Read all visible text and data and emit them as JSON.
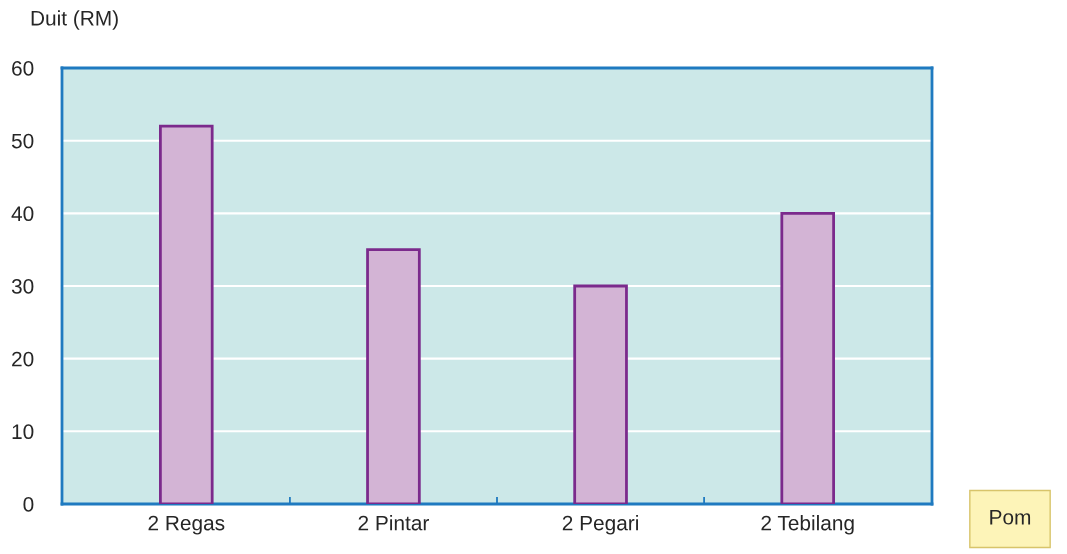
{
  "chart_data": {
    "type": "bar",
    "ylabel": "Duit (RM)",
    "xlabel": "Pom",
    "categories": [
      "2 Regas",
      "2 Pintar",
      "2 Pegari",
      "2 Tebilang"
    ],
    "values": [
      52,
      35,
      30,
      40
    ],
    "color": "#d3b4d5",
    "ylim": [
      0,
      60
    ],
    "yticks": [
      0,
      10,
      20,
      30,
      40,
      50,
      60
    ],
    "grid": "y"
  }
}
